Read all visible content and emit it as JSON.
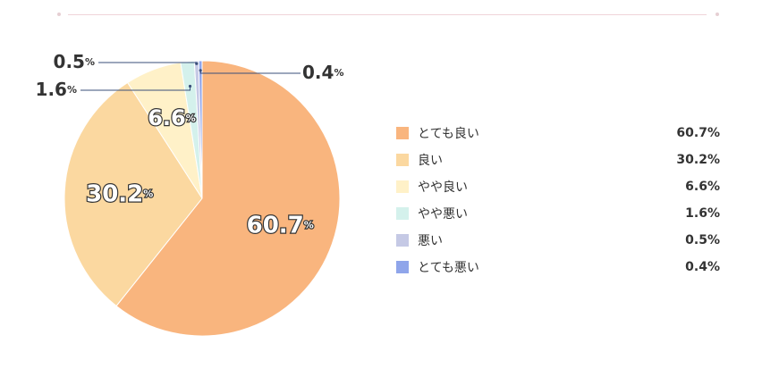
{
  "chart_data": {
    "type": "pie",
    "start_angle_deg": 0,
    "direction": "clockwise",
    "legend_position": "right",
    "slices": [
      {
        "label": "とても良い",
        "value": 60.7,
        "display": "60.7%",
        "color": "#F9B57E",
        "label_position": "inside"
      },
      {
        "label": "良い",
        "value": 30.2,
        "display": "30.2%",
        "color": "#FBD8A0",
        "label_position": "inside"
      },
      {
        "label": "やや良い",
        "value": 6.6,
        "display": "6.6%",
        "color": "#FFF1C8",
        "label_position": "inside"
      },
      {
        "label": "やや悪い",
        "value": 1.6,
        "display": "1.6%",
        "color": "#D4F1EC",
        "label_position": "outside-left"
      },
      {
        "label": "悪い",
        "value": 0.5,
        "display": "0.5%",
        "color": "#C5C9E5",
        "label_position": "outside-left"
      },
      {
        "label": "とても悪い",
        "value": 0.4,
        "display": "0.4%",
        "color": "#8FA5EA",
        "label_position": "outside-right"
      }
    ]
  }
}
